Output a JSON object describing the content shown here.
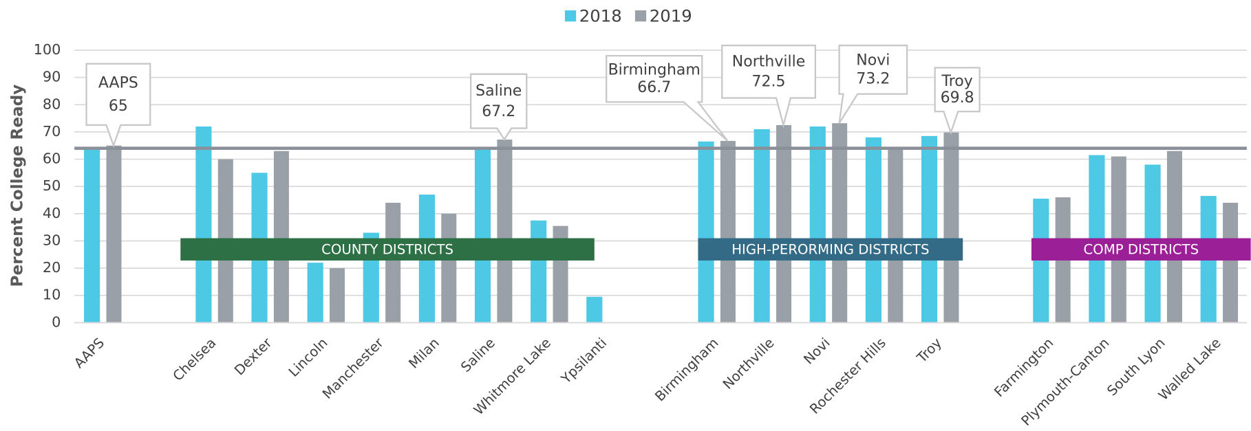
{
  "chart_data": {
    "type": "bar",
    "y_label": "Percent College Ready",
    "categories": [
      "AAPS",
      null,
      "Chelsea",
      "Dexter",
      "Lincoln",
      "Manchester",
      "Milan",
      "Saline",
      "Whitmore Lake",
      "Ypsilanti",
      null,
      "Birmingham",
      "Northville",
      "Novi",
      "Rochester Hills",
      "Troy",
      null,
      "Farmington",
      "Plymouth-Canton",
      "South Lyon",
      "Walled Lake"
    ],
    "series": [
      {
        "name": "2018",
        "color": "#4dc9e6",
        "values": [
          64,
          null,
          72,
          55,
          22,
          33,
          47,
          64,
          37.5,
          9.5,
          null,
          66.5,
          71,
          72,
          68,
          68.5,
          null,
          45.5,
          61.5,
          58,
          46.5
        ]
      },
      {
        "name": "2019",
        "color": "#9aa0a8",
        "values": [
          65,
          null,
          60,
          63,
          20,
          44,
          40,
          67.2,
          35.5,
          null,
          null,
          66.7,
          72.5,
          73.2,
          64.5,
          69.8,
          null,
          46,
          61,
          63,
          44
        ],
        "value_labels": [
          "65",
          null,
          null,
          null,
          null,
          null,
          null,
          "67.2",
          null,
          null,
          null,
          "66.7",
          "72.5",
          "73.2",
          null,
          "69.8",
          null,
          null,
          null,
          null,
          null
        ]
      }
    ],
    "reference_line": 64,
    "reference_color": "#8a9099",
    "groups": [
      {
        "name": "COUNTY DISTRICTS",
        "color": "#2e7045"
      },
      {
        "name": "HIGH-PERORMING DISTRICTS",
        "color": "#336b87"
      },
      {
        "name": "COMP DISTRICTS",
        "color": "#9b1f97"
      }
    ],
    "ylim": [
      0,
      100
    ],
    "yticks": [
      0,
      10,
      20,
      30,
      40,
      50,
      60,
      70,
      80,
      90,
      100
    ],
    "grid": true,
    "legend": "top"
  }
}
